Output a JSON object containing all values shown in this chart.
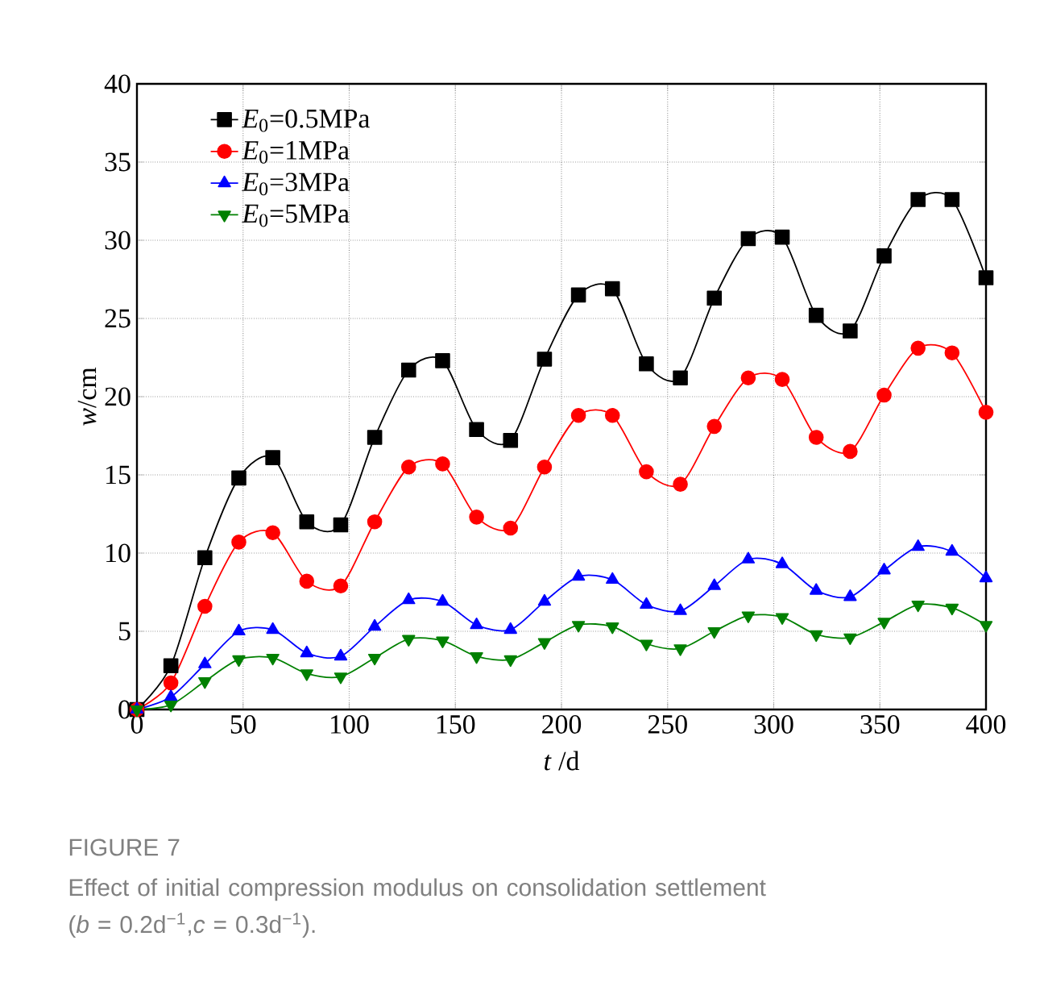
{
  "chart_data": {
    "type": "line",
    "xlabel": "*t* /d",
    "ylabel": "*w*/cm",
    "x": [
      0,
      16,
      32,
      48,
      64,
      80,
      96,
      112,
      128,
      144,
      160,
      176,
      192,
      208,
      224,
      240,
      256,
      272,
      288,
      304,
      320,
      336,
      352,
      368,
      384,
      400
    ],
    "series": [
      {
        "name": "*E*$_{0}$=0.5MPa",
        "color": "#000000",
        "marker": "square",
        "values": [
          0,
          2.8,
          9.7,
          14.8,
          16.1,
          12.0,
          11.8,
          17.4,
          21.7,
          22.3,
          17.9,
          17.2,
          22.4,
          26.5,
          26.9,
          22.1,
          21.2,
          26.3,
          30.1,
          30.2,
          25.2,
          24.2,
          29.0,
          32.6,
          32.6,
          27.6
        ]
      },
      {
        "name": "*E*$_{0}$=1MPa",
        "color": "#ff0000",
        "marker": "circle",
        "values": [
          0,
          1.7,
          6.6,
          10.7,
          11.3,
          8.2,
          7.9,
          12.0,
          15.5,
          15.7,
          12.3,
          11.6,
          15.5,
          18.8,
          18.8,
          15.2,
          14.4,
          18.1,
          21.2,
          21.1,
          17.4,
          16.5,
          20.1,
          23.1,
          22.8,
          19.0
        ]
      },
      {
        "name": "*E*$_{0}$=3MPa",
        "color": "#0000ff",
        "marker": "triangle",
        "values": [
          0,
          0.8,
          2.9,
          5.0,
          5.1,
          3.6,
          3.4,
          5.3,
          7.0,
          6.9,
          5.4,
          5.1,
          6.9,
          8.5,
          8.3,
          6.7,
          6.3,
          7.9,
          9.6,
          9.3,
          7.6,
          7.2,
          8.9,
          10.4,
          10.1,
          8.4
        ]
      },
      {
        "name": "*E*$_{0}$=5MPa",
        "color": "#008000",
        "marker": "triangle-down",
        "values": [
          0,
          0.3,
          1.8,
          3.2,
          3.3,
          2.3,
          2.1,
          3.3,
          4.5,
          4.4,
          3.4,
          3.2,
          4.3,
          5.4,
          5.3,
          4.2,
          3.9,
          5.0,
          6.0,
          5.9,
          4.8,
          4.6,
          5.6,
          6.7,
          6.5,
          5.4
        ]
      }
    ],
    "xlim": [
      0,
      400
    ],
    "ylim": [
      0,
      40
    ],
    "xticks": [
      0,
      50,
      100,
      150,
      200,
      250,
      300,
      350,
      400
    ],
    "yticks": [
      0,
      5,
      10,
      15,
      20,
      25,
      30,
      35,
      40
    ],
    "grid": true,
    "legend": "top left",
    "line_style": "solid",
    "annotations": [
      "FIGURE 7",
      "Effect of initial compression modulus on consolidation settlement",
      "(*b* = 0.2d$^{−1}$,*c* = 0.3d$^{−1}$)."
    ]
  }
}
